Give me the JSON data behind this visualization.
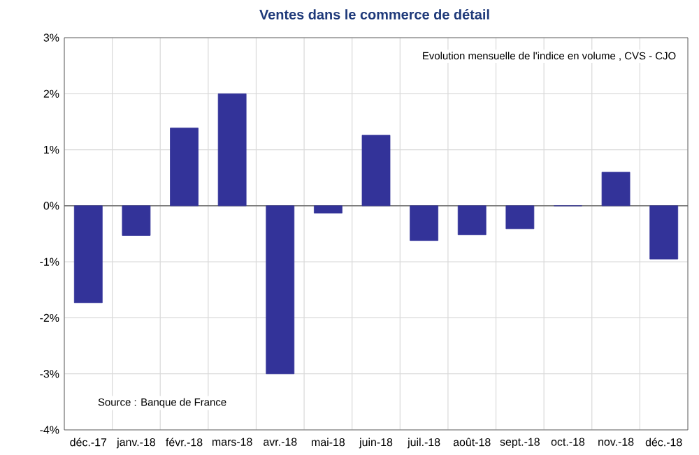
{
  "chart_data": {
    "type": "bar",
    "title": "Ventes dans le commerce de détail",
    "subtitle": "Evolution mensuelle de l'indice en volume , CVS - CJO",
    "annotations": [
      "Source : Banque de France"
    ],
    "categories": [
      "déc.-17",
      "janv.-18",
      "févr.-18",
      "mars-18",
      "avr.-18",
      "mai-18",
      "juin-18",
      "juil.-18",
      "août-18",
      "sept.-18",
      "oct.-18",
      "nov.-18",
      "déc.-18"
    ],
    "values": [
      -1.73,
      -0.53,
      1.39,
      2.0,
      -3.0,
      -0.13,
      1.26,
      -0.62,
      -0.52,
      -0.41,
      0,
      0.6,
      -0.95
    ],
    "color": "#333399",
    "ylim": [
      -4,
      3
    ],
    "yticks": [
      {
        "value": -4,
        "label": "-4%"
      },
      {
        "value": -3,
        "label": "-3%"
      },
      {
        "value": -2,
        "label": "-2%"
      },
      {
        "value": -1,
        "label": "-1%"
      },
      {
        "value": 0,
        "label": "0%"
      },
      {
        "value": 1,
        "label": "1%"
      },
      {
        "value": 2,
        "label": "2%"
      },
      {
        "value": 3,
        "label": "3%"
      }
    ],
    "grid": true
  }
}
